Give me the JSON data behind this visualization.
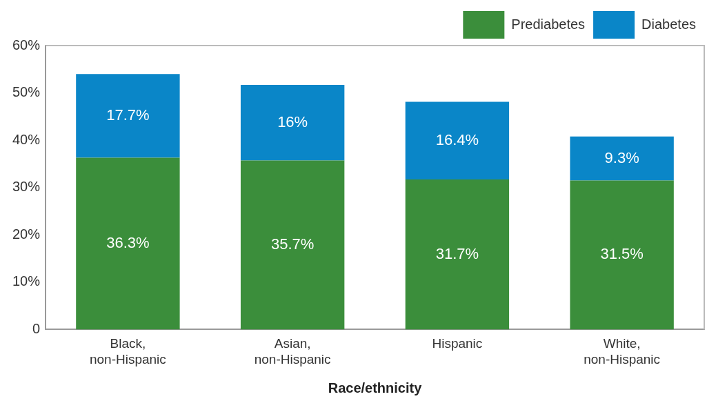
{
  "chart_data": {
    "type": "bar",
    "stacked": true,
    "xlabel": "Race/ethnicity",
    "categories": [
      "Black, non-Hispanic",
      "Asian, non-Hispanic",
      "Hispanic",
      "White, non-Hispanic"
    ],
    "series": [
      {
        "name": "Prediabetes",
        "color": "#3b8e3b",
        "values": [
          36.3,
          35.7,
          31.7,
          31.5
        ],
        "value_labels": [
          "36.3%",
          "35.7%",
          "31.7%",
          "31.5%"
        ]
      },
      {
        "name": "Diabetes",
        "color": "#0a86c8",
        "values": [
          17.7,
          16,
          16.4,
          9.3
        ],
        "value_labels": [
          "17.7%",
          "16%",
          "16.4%",
          "9.3%"
        ]
      }
    ],
    "ylim": [
      0,
      60
    ],
    "yticks": [
      {
        "value": 0,
        "label": "0"
      },
      {
        "value": 10,
        "label": "10%"
      },
      {
        "value": 20,
        "label": "20%"
      },
      {
        "value": 30,
        "label": "30%"
      },
      {
        "value": 40,
        "label": "40%"
      },
      {
        "value": 50,
        "label": "50%"
      },
      {
        "value": 60,
        "label": "60%"
      }
    ],
    "grid": false,
    "legend": "top right"
  }
}
